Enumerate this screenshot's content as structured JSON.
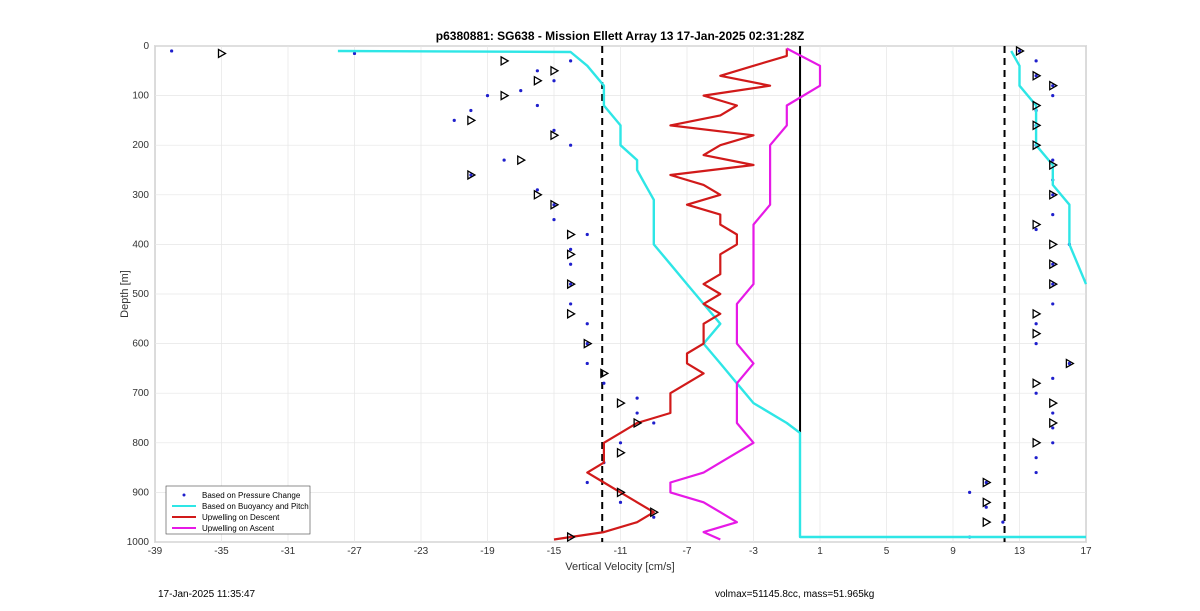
{
  "chart_data": {
    "type": "line",
    "title": "p6380881: SG638 - Mission Ellett Array 13 17-Jan-2025 02:31:28Z",
    "xlabel": "Vertical Velocity [cm/s]",
    "ylabel": "Depth [m]",
    "xlim": [
      -39,
      17
    ],
    "ylim": [
      0,
      1000
    ],
    "y_reversed": true,
    "grid": true,
    "xticks": [
      "-39",
      "-35",
      "-31",
      "-27",
      "-23",
      "-19",
      "-15",
      "-11",
      "-7",
      "-3",
      "1",
      "5",
      "9",
      "13",
      "17"
    ],
    "yticks": [
      "0",
      "100",
      "200",
      "300",
      "400",
      "500",
      "600",
      "700",
      "800",
      "900",
      "1000"
    ],
    "reference_lines": [
      {
        "x": -12.1,
        "style": "dashed",
        "color": "#000000"
      },
      {
        "x": 12.1,
        "style": "dashed",
        "color": "#000000"
      },
      {
        "x": -0.2,
        "style": "solid",
        "color": "#000000",
        "depth_range": [
          0,
          780
        ]
      }
    ],
    "legend_position": "bottom-left",
    "series": [
      {
        "name": "Based on Pressure Change",
        "style": "dots",
        "color": "#1f1fcc",
        "descent": [
          [
            -38,
            10
          ],
          [
            -27,
            15
          ],
          [
            -14,
            30
          ],
          [
            -16,
            50
          ],
          [
            -15,
            70
          ],
          [
            -17,
            90
          ],
          [
            -19,
            100
          ],
          [
            -16,
            120
          ],
          [
            -20,
            130
          ],
          [
            -21,
            150
          ],
          [
            -15,
            170
          ],
          [
            -14,
            200
          ],
          [
            -18,
            230
          ],
          [
            -20,
            260
          ],
          [
            -16,
            290
          ],
          [
            -15,
            320
          ],
          [
            -15,
            350
          ],
          [
            -13,
            380
          ],
          [
            -14,
            410
          ],
          [
            -14,
            440
          ],
          [
            -14,
            480
          ],
          [
            -14,
            520
          ],
          [
            -13,
            560
          ],
          [
            -13,
            600
          ],
          [
            -13,
            640
          ],
          [
            -12,
            680
          ],
          [
            -10,
            710
          ],
          [
            -10,
            740
          ],
          [
            -9,
            760
          ],
          [
            -11,
            800
          ],
          [
            -12,
            840
          ],
          [
            -13,
            880
          ],
          [
            -11,
            920
          ],
          [
            -9,
            950
          ],
          [
            -14,
            990
          ]
        ],
        "ascent": [
          [
            13,
            10
          ],
          [
            14,
            30
          ],
          [
            14,
            60
          ],
          [
            15,
            80
          ],
          [
            15,
            100
          ],
          [
            14,
            130
          ],
          [
            14,
            160
          ],
          [
            14,
            200
          ],
          [
            15,
            230
          ],
          [
            15,
            270
          ],
          [
            15,
            300
          ],
          [
            15,
            340
          ],
          [
            14,
            370
          ],
          [
            16,
            400
          ],
          [
            15,
            440
          ],
          [
            15,
            480
          ],
          [
            15,
            520
          ],
          [
            14,
            560
          ],
          [
            14,
            600
          ],
          [
            16,
            640
          ],
          [
            15,
            670
          ],
          [
            14,
            700
          ],
          [
            15,
            740
          ],
          [
            15,
            770
          ],
          [
            15,
            800
          ],
          [
            14,
            830
          ],
          [
            14,
            860
          ],
          [
            11,
            880
          ],
          [
            10,
            900
          ],
          [
            11,
            930
          ],
          [
            12,
            960
          ],
          [
            10,
            990
          ]
        ]
      },
      {
        "name": "Based on Buoyancy and Pitch",
        "style": "line",
        "color": "#2ee6e6",
        "descent": [
          [
            -28,
            10
          ],
          [
            -14,
            12
          ],
          [
            -13,
            40
          ],
          [
            -12,
            80
          ],
          [
            -12,
            120
          ],
          [
            -11,
            160
          ],
          [
            -11,
            200
          ],
          [
            -10,
            230
          ],
          [
            -10,
            250
          ],
          [
            -9.5,
            280
          ],
          [
            -9,
            310
          ],
          [
            -9,
            340
          ],
          [
            -9,
            370
          ],
          [
            -9,
            400
          ],
          [
            -8,
            440
          ],
          [
            -7,
            480
          ],
          [
            -6,
            520
          ],
          [
            -5,
            560
          ],
          [
            -6,
            600
          ],
          [
            -5,
            640
          ],
          [
            -4,
            680
          ],
          [
            -3,
            720
          ],
          [
            -1,
            760
          ],
          [
            -0.2,
            780
          ],
          [
            -0.2,
            850
          ],
          [
            -0.2,
            900
          ],
          [
            -0.2,
            950
          ],
          [
            -0.2,
            990
          ],
          [
            17,
            990
          ]
        ],
        "ascent": [
          [
            12.5,
            10
          ],
          [
            13,
            40
          ],
          [
            13,
            80
          ],
          [
            14,
            120
          ],
          [
            14,
            160
          ],
          [
            14,
            200
          ],
          [
            15,
            240
          ],
          [
            15,
            280
          ],
          [
            16,
            320
          ],
          [
            16,
            360
          ],
          [
            16,
            400
          ],
          [
            16.5,
            440
          ],
          [
            17,
            480
          ]
        ]
      },
      {
        "name": "Upwelling on Descent",
        "style": "line",
        "color": "#d11a1a",
        "data": [
          [
            -1,
            5
          ],
          [
            -1,
            20
          ],
          [
            -3,
            40
          ],
          [
            -5,
            60
          ],
          [
            -2,
            80
          ],
          [
            -6,
            100
          ],
          [
            -4,
            120
          ],
          [
            -5,
            140
          ],
          [
            -8,
            160
          ],
          [
            -3,
            180
          ],
          [
            -5,
            200
          ],
          [
            -6,
            220
          ],
          [
            -3,
            240
          ],
          [
            -8,
            260
          ],
          [
            -6,
            280
          ],
          [
            -5,
            300
          ],
          [
            -7,
            320
          ],
          [
            -5,
            340
          ],
          [
            -5,
            360
          ],
          [
            -4,
            380
          ],
          [
            -4,
            400
          ],
          [
            -5,
            420
          ],
          [
            -5,
            440
          ],
          [
            -5,
            460
          ],
          [
            -6,
            480
          ],
          [
            -5,
            500
          ],
          [
            -6,
            520
          ],
          [
            -5,
            540
          ],
          [
            -6,
            560
          ],
          [
            -6,
            580
          ],
          [
            -6,
            600
          ],
          [
            -7,
            620
          ],
          [
            -7,
            640
          ],
          [
            -6,
            660
          ],
          [
            -7,
            680
          ],
          [
            -8,
            700
          ],
          [
            -8,
            720
          ],
          [
            -8,
            740
          ],
          [
            -10,
            760
          ],
          [
            -11,
            780
          ],
          [
            -12,
            800
          ],
          [
            -12,
            820
          ],
          [
            -12,
            840
          ],
          [
            -13,
            860
          ],
          [
            -12,
            880
          ],
          [
            -11,
            900
          ],
          [
            -10,
            920
          ],
          [
            -9,
            940
          ],
          [
            -10,
            960
          ],
          [
            -12,
            980
          ],
          [
            -15,
            995
          ]
        ]
      },
      {
        "name": "Upwelling on Ascent",
        "style": "line",
        "color": "#e619e6",
        "data": [
          [
            -1,
            5
          ],
          [
            1,
            40
          ],
          [
            1,
            80
          ],
          [
            -1,
            120
          ],
          [
            -1,
            160
          ],
          [
            -2,
            200
          ],
          [
            -2,
            240
          ],
          [
            -2,
            280
          ],
          [
            -2,
            320
          ],
          [
            -3,
            360
          ],
          [
            -3,
            400
          ],
          [
            -3,
            440
          ],
          [
            -3,
            480
          ],
          [
            -4,
            520
          ],
          [
            -4,
            560
          ],
          [
            -4,
            600
          ],
          [
            -3,
            640
          ],
          [
            -4,
            680
          ],
          [
            -4,
            720
          ],
          [
            -4,
            760
          ],
          [
            -3,
            800
          ],
          [
            -5,
            840
          ],
          [
            -6,
            860
          ],
          [
            -8,
            880
          ],
          [
            -8,
            900
          ],
          [
            -6,
            920
          ],
          [
            -5,
            940
          ],
          [
            -4,
            960
          ],
          [
            -6,
            980
          ],
          [
            -5,
            995
          ]
        ]
      }
    ],
    "markers": {
      "name": "triangle-markers",
      "descent": [
        [
          -35,
          15
        ],
        [
          -18,
          30
        ],
        [
          -15,
          50
        ],
        [
          -16,
          70
        ],
        [
          -18,
          100
        ],
        [
          -20,
          150
        ],
        [
          -15,
          180
        ],
        [
          -17,
          230
        ],
        [
          -20,
          260
        ],
        [
          -16,
          300
        ],
        [
          -15,
          320
        ],
        [
          -14,
          380
        ],
        [
          -14,
          420
        ],
        [
          -14,
          480
        ],
        [
          -14,
          540
        ],
        [
          -13,
          600
        ],
        [
          -12,
          660
        ],
        [
          -11,
          720
        ],
        [
          -10,
          760
        ],
        [
          -11,
          820
        ],
        [
          -11,
          900
        ],
        [
          -9,
          940
        ],
        [
          -14,
          990
        ]
      ],
      "ascent": [
        [
          13,
          10
        ],
        [
          14,
          60
        ],
        [
          15,
          80
        ],
        [
          14,
          120
        ],
        [
          14,
          160
        ],
        [
          14,
          200
        ],
        [
          15,
          240
        ],
        [
          15,
          300
        ],
        [
          14,
          360
        ],
        [
          15,
          400
        ],
        [
          15,
          440
        ],
        [
          15,
          480
        ],
        [
          14,
          540
        ],
        [
          14,
          580
        ],
        [
          16,
          640
        ],
        [
          14,
          680
        ],
        [
          15,
          720
        ],
        [
          15,
          760
        ],
        [
          14,
          800
        ],
        [
          11,
          880
        ],
        [
          11,
          920
        ],
        [
          11,
          960
        ]
      ]
    }
  },
  "footer": {
    "left_timestamp": "17-Jan-2025 11:35:47",
    "right_info": "volmax=51145.8cc, mass=51.965kg"
  }
}
